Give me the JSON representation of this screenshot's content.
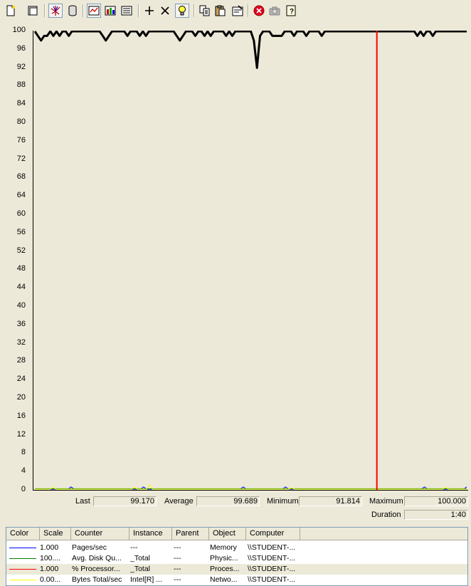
{
  "toolbar": {
    "buttons": [
      {
        "name": "new-counter-set-icon"
      },
      {
        "name": "clear-display-icon"
      },
      {
        "name": "view-current-activity-icon",
        "pressed": true
      },
      {
        "name": "view-log-data-icon"
      },
      {
        "name": "view-graph-icon",
        "pressed": true
      },
      {
        "name": "view-histogram-icon"
      },
      {
        "name": "view-report-icon"
      },
      {
        "name": "add-counter-icon"
      },
      {
        "name": "delete-counter-icon"
      },
      {
        "name": "highlight-icon",
        "pressed": true
      },
      {
        "name": "copy-properties-icon"
      },
      {
        "name": "paste-counter-list-icon"
      },
      {
        "name": "properties-icon"
      },
      {
        "name": "freeze-display-icon"
      },
      {
        "name": "update-data-icon"
      },
      {
        "name": "help-icon"
      }
    ]
  },
  "graph": {
    "y_ticks": [
      "100",
      "96",
      "92",
      "88",
      "84",
      "80",
      "76",
      "72",
      "68",
      "64",
      "60",
      "56",
      "52",
      "48",
      "44",
      "40",
      "36",
      "32",
      "28",
      "24",
      "20",
      "16",
      "12",
      "8",
      "4",
      "0"
    ]
  },
  "stats": {
    "last_label": "Last",
    "last_value": "99.170",
    "average_label": "Average",
    "average_value": "99.689",
    "minimum_label": "Minimum",
    "minimum_value": "91.814",
    "maximum_label": "Maximum",
    "maximum_value": "100.000",
    "duration_label": "Duration",
    "duration_value": "1:40"
  },
  "legend": {
    "headers": [
      "Color",
      "Scale",
      "Counter",
      "Instance",
      "Parent",
      "Object",
      "Computer"
    ],
    "rows": [
      {
        "color": "#0000ff",
        "scale": "1.000",
        "counter": "Pages/sec",
        "instance": "---",
        "parent": "---",
        "object": "Memory",
        "computer": "\\\\STUDENT-..."
      },
      {
        "color": "#008000",
        "scale": "100....",
        "counter": "Avg. Disk Qu...",
        "instance": "_Total",
        "parent": "---",
        "object": "Physic...",
        "computer": "\\\\STUDENT-..."
      },
      {
        "color": "#ff0000",
        "scale": "1.000",
        "counter": "% Processor...",
        "instance": "_Total",
        "parent": "---",
        "object": "Proces...",
        "computer": "\\\\STUDENT-...",
        "selected": true
      },
      {
        "color": "#ffff00",
        "scale": "0.00...",
        "counter": "Bytes Total/sec",
        "instance": "Intel[R] ...",
        "parent": "---",
        "object": "Netwo...",
        "computer": "\\\\STUDENT-..."
      }
    ]
  },
  "chart_data": {
    "type": "line",
    "ylim": [
      0,
      100
    ],
    "grid": false,
    "time_bar_position": 0.79,
    "series": [
      {
        "name": "% Processor Time",
        "color": "#000000",
        "values": [
          100,
          99,
          98,
          99,
          99,
          100,
          99,
          100,
          99,
          100,
          100,
          99,
          100,
          100,
          100,
          100,
          100,
          100,
          100,
          100,
          100,
          100,
          99,
          98,
          99,
          100,
          100,
          100,
          100,
          100,
          99,
          100,
          100,
          100,
          99,
          100,
          99,
          100,
          100,
          100,
          100,
          100,
          100,
          100,
          100,
          100,
          99,
          98,
          99,
          100,
          100,
          100,
          99,
          100,
          100,
          99,
          100,
          99,
          100,
          100,
          100,
          100,
          99,
          100,
          99,
          100,
          100,
          100,
          100,
          100,
          100,
          98,
          92,
          99,
          100,
          100,
          100,
          99,
          99,
          99,
          99,
          100,
          100,
          100,
          99,
          100,
          100,
          100,
          99,
          100,
          100,
          100,
          100,
          99,
          100,
          100,
          100,
          100,
          100,
          100,
          100,
          100,
          100,
          100,
          100,
          100,
          100,
          100,
          100,
          100,
          100,
          100,
          100,
          100,
          100,
          100,
          100,
          100,
          100,
          100,
          100,
          100,
          100,
          100,
          99,
          100,
          99,
          100,
          100,
          99,
          100,
          100,
          100,
          100,
          100,
          100,
          100,
          100,
          100,
          100,
          100
        ]
      },
      {
        "name": "Pages/sec",
        "color": "#0000ff",
        "values": [
          0,
          0,
          0,
          0,
          0,
          0,
          0,
          0,
          0,
          0,
          0,
          0,
          0.5,
          0,
          0,
          0,
          0,
          0,
          0,
          0,
          0,
          0,
          0,
          0,
          0,
          0,
          0,
          0,
          0,
          0,
          0,
          0,
          0,
          0,
          0,
          0,
          0.5,
          0,
          0,
          0,
          0,
          0,
          0,
          0,
          0,
          0,
          0,
          0,
          0,
          0,
          0,
          0,
          0,
          0,
          0,
          0,
          0,
          0,
          0,
          0,
          0,
          0,
          0,
          0,
          0,
          0,
          0,
          0,
          0,
          0.5,
          0,
          0,
          0,
          0,
          0,
          0,
          0,
          0,
          0,
          0,
          0,
          0,
          0,
          0.5,
          0,
          0,
          0,
          0,
          0,
          0,
          0,
          0,
          0,
          0,
          0,
          0,
          0,
          0,
          0,
          0,
          0,
          0,
          0,
          0,
          0,
          0,
          0,
          0,
          0,
          0,
          0,
          0,
          0,
          0,
          0,
          0,
          0,
          0,
          0,
          0,
          0,
          0,
          0,
          0,
          0,
          0,
          0,
          0,
          0,
          0.5,
          0,
          0,
          0,
          0,
          0,
          0,
          0,
          0,
          0,
          0,
          0,
          0,
          0,
          0.5
        ]
      },
      {
        "name": "Avg. Disk Queue Length",
        "color": "#008000",
        "values": [
          0.1,
          0.1,
          0.1,
          0.1,
          0.1,
          0.1,
          0.1,
          0.1,
          0.1,
          0.1,
          0.1,
          0.1,
          0.1,
          0.1,
          0.1,
          0.1,
          0.1,
          0.1,
          0.1,
          0.1,
          0.1,
          0.1,
          0.1,
          0.1,
          0.1,
          0.1,
          0.1,
          0.1,
          0.1,
          0.1,
          0.1,
          0.1,
          0.1,
          0.1,
          0.1,
          0.1,
          0.1,
          0.1,
          0.1,
          0.1,
          0.1,
          0.1,
          0.1,
          0.1,
          0.1,
          0.1,
          0.1,
          0.1,
          0.1,
          0.1,
          0.1,
          0.1,
          0.1,
          0.1,
          0.1,
          0.1,
          0.1,
          0.1,
          0.1,
          0.1,
          0.1,
          0.1,
          0.1,
          0.1,
          0.1,
          0.1,
          0.1,
          0.1,
          0.1,
          0.1,
          0.1,
          0.1,
          0.1,
          0.1,
          0.1,
          0.1,
          0.1,
          0.1,
          0.1,
          0.1,
          0.1,
          0.1,
          0.1,
          0.1,
          0.1,
          0.1,
          0.1,
          0.1,
          0.1,
          0.1,
          0.1,
          0.1,
          0.1,
          0.1,
          0.1,
          0.1,
          0.1,
          0.1,
          0.1,
          0.1,
          0.1,
          0.1,
          0.1,
          0.1,
          0.1,
          0.1,
          0.1,
          0.1,
          0.1,
          0.1,
          0.1,
          0.1,
          0.1,
          0.1,
          0.1,
          0.1,
          0.1,
          0.1,
          0.1,
          0.1,
          0.1,
          0.1,
          0.1,
          0.1,
          0.1,
          0.1,
          0.1,
          0.1,
          0.1,
          0.1,
          0.1,
          0.1,
          0.1,
          0.1,
          0.1,
          0.1,
          0.1,
          0.1,
          0.1
        ]
      },
      {
        "name": "Bytes Total/sec",
        "color": "#ffff00",
        "values": [
          0,
          0,
          0,
          0,
          0,
          0,
          0.4,
          0,
          0,
          0,
          0,
          0,
          0,
          0,
          0,
          0,
          0,
          0,
          0,
          0,
          0,
          0,
          0,
          0,
          0,
          0,
          0,
          0,
          0,
          0,
          0,
          0,
          0,
          0.4,
          0,
          0,
          0,
          0,
          1,
          0,
          0,
          0,
          0,
          0,
          0,
          0,
          0,
          0,
          0,
          0,
          0,
          0,
          0,
          0,
          0,
          0,
          0,
          0,
          0,
          0,
          0,
          0,
          0,
          0,
          0,
          0,
          0,
          0,
          0,
          0,
          0,
          0,
          0,
          0,
          0,
          0,
          0,
          0,
          0,
          0,
          0,
          0,
          0,
          0,
          0,
          0.3,
          0,
          0,
          0,
          0,
          0,
          0,
          0,
          0,
          0,
          0,
          0,
          0,
          0,
          0,
          0,
          0,
          0,
          0,
          0,
          0,
          0,
          0,
          0,
          0,
          0,
          0,
          0,
          0,
          0,
          0,
          0,
          0,
          0,
          0,
          0,
          0,
          0,
          0,
          0,
          0,
          0,
          0,
          0,
          0,
          0,
          0,
          0,
          0,
          0,
          0,
          0.4,
          0,
          0,
          0,
          0,
          0,
          0,
          0
        ]
      }
    ]
  }
}
